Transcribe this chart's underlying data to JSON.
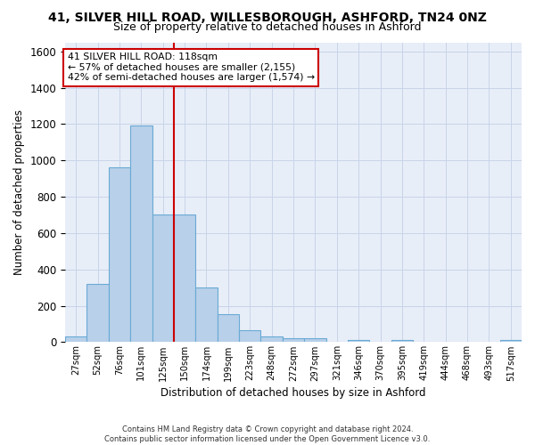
{
  "title_line1": "41, SILVER HILL ROAD, WILLESBOROUGH, ASHFORD, TN24 0NZ",
  "title_line2": "Size of property relative to detached houses in Ashford",
  "xlabel": "Distribution of detached houses by size in Ashford",
  "ylabel": "Number of detached properties",
  "bar_labels": [
    "27sqm",
    "52sqm",
    "76sqm",
    "101sqm",
    "125sqm",
    "150sqm",
    "174sqm",
    "199sqm",
    "223sqm",
    "248sqm",
    "272sqm",
    "297sqm",
    "321sqm",
    "346sqm",
    "370sqm",
    "395sqm",
    "419sqm",
    "444sqm",
    "468sqm",
    "493sqm",
    "517sqm"
  ],
  "bar_values": [
    30,
    320,
    960,
    1190,
    700,
    700,
    300,
    155,
    65,
    30,
    20,
    20,
    0,
    10,
    0,
    10,
    0,
    0,
    0,
    0,
    10
  ],
  "bar_color": "#b8d0ea",
  "bar_edge_color": "#6aaad4",
  "annotation_title": "41 SILVER HILL ROAD: 118sqm",
  "annotation_line1": "← 57% of detached houses are smaller (2,155)",
  "annotation_line2": "42% of semi-detached houses are larger (1,574) →",
  "annotation_box_facecolor": "#ffffff",
  "annotation_box_edgecolor": "#cc0000",
  "vline_color": "#cc0000",
  "vline_x": 4.5,
  "ylim": [
    0,
    1650
  ],
  "yticks": [
    0,
    200,
    400,
    600,
    800,
    1000,
    1200,
    1400,
    1600
  ],
  "grid_color": "#c8d4e8",
  "bg_color": "#e8eef8",
  "title_fontsize": 10,
  "subtitle_fontsize": 9,
  "footnote": "Contains HM Land Registry data © Crown copyright and database right 2024.\nContains public sector information licensed under the Open Government Licence v3.0."
}
